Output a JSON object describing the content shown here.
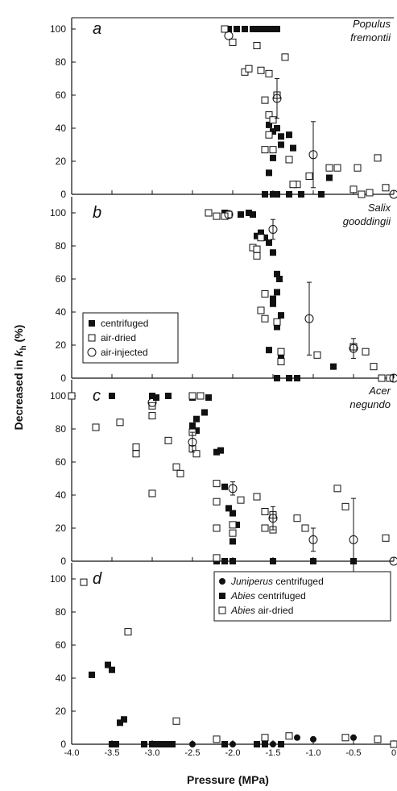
{
  "figure": {
    "ylabel_prefix": "Decreased in ",
    "ylabel_var": "k",
    "ylabel_sub": "h",
    "ylabel_suffix": " (%)",
    "xlabel": "Pressure (MPa)",
    "x_ticks": [
      "-4.0",
      "-3.5",
      "-3.0",
      "-2.5",
      "-2.0",
      "-1.5",
      "-1.0",
      "-0.5",
      "0"
    ],
    "y_ticks": [
      "0",
      "20",
      "40",
      "60",
      "80",
      "100"
    ]
  },
  "chart_data": [
    {
      "type": "scatter",
      "panel": "a",
      "species_line1": "Populus",
      "species_line2": "fremontii",
      "xlim": [
        -4.0,
        0
      ],
      "ylim": [
        0,
        100
      ],
      "series": [
        {
          "name": "centrifuged",
          "marker": "filled-square",
          "points": [
            [
              -2.05,
              100
            ],
            [
              -1.95,
              100
            ],
            [
              -1.85,
              100
            ],
            [
              -1.75,
              100
            ],
            [
              -1.7,
              100
            ],
            [
              -1.65,
              100
            ],
            [
              -1.6,
              100
            ],
            [
              -1.55,
              100
            ],
            [
              -1.5,
              100
            ],
            [
              -1.45,
              100
            ],
            [
              -1.55,
              42
            ],
            [
              -1.5,
              38
            ],
            [
              -1.45,
              40
            ],
            [
              -1.4,
              30
            ],
            [
              -1.3,
              36
            ],
            [
              -1.25,
              28
            ],
            [
              -1.5,
              22
            ],
            [
              -1.55,
              13
            ],
            [
              -1.6,
              0
            ],
            [
              -1.5,
              0
            ],
            [
              -1.45,
              0
            ],
            [
              -1.3,
              0
            ],
            [
              -1.15,
              0
            ],
            [
              -0.9,
              0
            ],
            [
              -0.8,
              10
            ],
            [
              -1.4,
              35
            ]
          ]
        },
        {
          "name": "air-dried",
          "marker": "open-square",
          "points": [
            [
              -2.1,
              100
            ],
            [
              -2.0,
              92
            ],
            [
              -1.85,
              74
            ],
            [
              -1.8,
              76
            ],
            [
              -1.7,
              90
            ],
            [
              -1.65,
              75
            ],
            [
              -1.55,
              73
            ],
            [
              -1.35,
              83
            ],
            [
              -1.45,
              60
            ],
            [
              -1.6,
              57
            ],
            [
              -1.55,
              48
            ],
            [
              -1.5,
              45
            ],
            [
              -1.55,
              36
            ],
            [
              -1.5,
              27
            ],
            [
              -1.3,
              21
            ],
            [
              -1.2,
              6
            ],
            [
              -1.05,
              11
            ],
            [
              -0.8,
              16
            ],
            [
              -0.7,
              16
            ],
            [
              -0.5,
              3
            ],
            [
              -0.4,
              0
            ],
            [
              -0.3,
              1
            ],
            [
              -0.2,
              22
            ],
            [
              -0.1,
              4
            ],
            [
              -0.45,
              16
            ],
            [
              -1.6,
              27
            ],
            [
              -1.25,
              6
            ]
          ]
        },
        {
          "name": "air-injected",
          "marker": "open-circle",
          "points": [
            [
              -2.05,
              96
            ],
            [
              -1.45,
              58
            ],
            [
              -1.0,
              24
            ],
            [
              0,
              0
            ]
          ],
          "error": [
            [
              0,
              0
            ],
            [
              12,
              12
            ],
            [
              20,
              20
            ],
            [
              0,
              0
            ]
          ]
        }
      ]
    },
    {
      "type": "scatter",
      "panel": "b",
      "species_line1": "Salix",
      "species_line2": "gooddingii",
      "xlim": [
        -4.0,
        0
      ],
      "ylim": [
        0,
        100
      ],
      "series": [
        {
          "name": "centrifuged",
          "marker": "filled-square",
          "points": [
            [
              -2.1,
              100
            ],
            [
              -2.05,
              99
            ],
            [
              -1.9,
              99
            ],
            [
              -1.8,
              100
            ],
            [
              -1.75,
              99
            ],
            [
              -1.7,
              86
            ],
            [
              -1.65,
              88
            ],
            [
              -1.6,
              85
            ],
            [
              -1.55,
              82
            ],
            [
              -1.5,
              76
            ],
            [
              -1.45,
              63
            ],
            [
              -1.42,
              60
            ],
            [
              -1.5,
              45
            ],
            [
              -1.45,
              52
            ],
            [
              -1.4,
              38
            ],
            [
              -1.45,
              31
            ],
            [
              -1.55,
              17
            ],
            [
              -1.4,
              12
            ],
            [
              -1.45,
              0
            ],
            [
              -1.3,
              0
            ],
            [
              -1.2,
              0
            ],
            [
              -0.75,
              7
            ],
            [
              -1.5,
              48
            ]
          ]
        },
        {
          "name": "air-dried",
          "marker": "open-square",
          "points": [
            [
              -2.3,
              100
            ],
            [
              -2.2,
              98
            ],
            [
              -2.05,
              99
            ],
            [
              -2.1,
              98
            ],
            [
              -1.7,
              74
            ],
            [
              -1.75,
              79
            ],
            [
              -1.7,
              78
            ],
            [
              -1.65,
              85
            ],
            [
              -1.6,
              51
            ],
            [
              -1.65,
              41
            ],
            [
              -1.6,
              36
            ],
            [
              -1.45,
              34
            ],
            [
              -1.4,
              16
            ],
            [
              -1.4,
              10
            ],
            [
              -0.95,
              14
            ],
            [
              -0.5,
              19
            ],
            [
              -0.35,
              16
            ],
            [
              -0.25,
              7
            ],
            [
              -0.15,
              0
            ],
            [
              -0.05,
              0
            ]
          ]
        },
        {
          "name": "air-injected",
          "marker": "open-circle",
          "points": [
            [
              -2.05,
              99
            ],
            [
              -1.5,
              90
            ],
            [
              -1.05,
              36
            ],
            [
              -0.5,
              18
            ],
            [
              0,
              0
            ]
          ],
          "error": [
            [
              0,
              0
            ],
            [
              6,
              6
            ],
            [
              22,
              22
            ],
            [
              6,
              6
            ],
            [
              0,
              0
            ]
          ]
        }
      ],
      "legend": {
        "position": "mid-left",
        "entries": [
          "centrifuged",
          "air-dried",
          "air-injected"
        ]
      }
    },
    {
      "type": "scatter",
      "panel": "c",
      "species_line1": "Acer",
      "species_line2": "negundo",
      "xlim": [
        -4.0,
        0
      ],
      "ylim": [
        0,
        100
      ],
      "series": [
        {
          "name": "centrifuged",
          "marker": "filled-square",
          "points": [
            [
              -3.5,
              100
            ],
            [
              -3.0,
              100
            ],
            [
              -2.95,
              99
            ],
            [
              -2.8,
              100
            ],
            [
              -2.5,
              99
            ],
            [
              -2.45,
              86
            ],
            [
              -2.5,
              82
            ],
            [
              -2.45,
              79
            ],
            [
              -2.35,
              90
            ],
            [
              -2.3,
              99
            ],
            [
              -2.2,
              66
            ],
            [
              -2.15,
              67
            ],
            [
              -2.1,
              45
            ],
            [
              -2.05,
              32
            ],
            [
              -2.0,
              29
            ],
            [
              -1.95,
              22
            ],
            [
              -2.0,
              12
            ],
            [
              -2.2,
              0
            ],
            [
              -2.1,
              0
            ],
            [
              -2.0,
              0
            ],
            [
              -1.5,
              0
            ],
            [
              -1.0,
              0
            ],
            [
              -0.5,
              0
            ]
          ]
        },
        {
          "name": "air-dried",
          "marker": "open-square",
          "points": [
            [
              -4.0,
              100
            ],
            [
              -3.7,
              81
            ],
            [
              -3.4,
              84
            ],
            [
              -3.2,
              65
            ],
            [
              -3.2,
              69
            ],
            [
              -3.0,
              88
            ],
            [
              -3.0,
              94
            ],
            [
              -3.0,
              41
            ],
            [
              -2.8,
              73
            ],
            [
              -2.7,
              57
            ],
            [
              -2.65,
              53
            ],
            [
              -2.5,
              78
            ],
            [
              -2.5,
              68
            ],
            [
              -2.45,
              65
            ],
            [
              -2.5,
              100
            ],
            [
              -2.4,
              100
            ],
            [
              -2.2,
              47
            ],
            [
              -2.2,
              36
            ],
            [
              -2.2,
              20
            ],
            [
              -2.0,
              17
            ],
            [
              -2.0,
              22
            ],
            [
              -1.9,
              37
            ],
            [
              -1.7,
              39
            ],
            [
              -1.6,
              30
            ],
            [
              -1.6,
              20
            ],
            [
              -1.5,
              19
            ],
            [
              -1.5,
              28
            ],
            [
              -1.2,
              26
            ],
            [
              -1.1,
              20
            ],
            [
              -0.7,
              44
            ],
            [
              -0.6,
              33
            ],
            [
              -0.1,
              14
            ],
            [
              -2.2,
              2
            ]
          ]
        },
        {
          "name": "air-injected",
          "marker": "open-circle",
          "points": [
            [
              -3.0,
              96
            ],
            [
              -2.5,
              72
            ],
            [
              -2.0,
              44
            ],
            [
              -1.5,
              26
            ],
            [
              -1.0,
              13
            ],
            [
              -0.5,
              13
            ],
            [
              0,
              0
            ]
          ],
          "error": [
            [
              0,
              0
            ],
            [
              6,
              6
            ],
            [
              4,
              4
            ],
            [
              7,
              7
            ],
            [
              7,
              7
            ],
            [
              25,
              25
            ],
            [
              0,
              0
            ]
          ]
        }
      ]
    },
    {
      "type": "scatter",
      "panel": "d",
      "xlim": [
        -4.0,
        0
      ],
      "ylim": [
        0,
        100
      ],
      "series": [
        {
          "name": "Juniperus centrifuged",
          "marker": "filled-circle",
          "points": [
            [
              -3.45,
              0
            ],
            [
              -3.0,
              0
            ],
            [
              -2.85,
              0
            ],
            [
              -2.5,
              0
            ],
            [
              -2.0,
              0
            ],
            [
              -1.5,
              0
            ],
            [
              -1.2,
              4
            ],
            [
              -1.0,
              3
            ],
            [
              -0.5,
              4
            ]
          ]
        },
        {
          "name": "Abies centrifuged",
          "marker": "filled-square",
          "points": [
            [
              -3.75,
              42
            ],
            [
              -3.55,
              48
            ],
            [
              -3.5,
              45
            ],
            [
              -3.45,
              0
            ],
            [
              -3.5,
              0
            ],
            [
              -3.35,
              15
            ],
            [
              -3.4,
              13
            ],
            [
              -3.1,
              0
            ],
            [
              -3.0,
              0
            ],
            [
              -2.95,
              0
            ],
            [
              -2.9,
              0
            ],
            [
              -2.85,
              0
            ],
            [
              -2.8,
              0
            ],
            [
              -2.75,
              0
            ],
            [
              -2.1,
              0
            ],
            [
              -1.7,
              0
            ],
            [
              -1.6,
              0
            ],
            [
              -1.4,
              0
            ]
          ]
        },
        {
          "name": "Abies air-dried",
          "marker": "open-square",
          "points": [
            [
              -3.85,
              98
            ],
            [
              -3.3,
              68
            ],
            [
              -2.7,
              14
            ],
            [
              -2.2,
              3
            ],
            [
              -1.6,
              4
            ],
            [
              -1.3,
              5
            ],
            [
              -0.6,
              4
            ],
            [
              -0.2,
              3
            ],
            [
              0,
              0
            ]
          ]
        }
      ],
      "legend": {
        "position": "top-right",
        "entries": [
          {
            "italic": "Juniperus",
            "rest": " centrifuged",
            "marker": "filled-circle"
          },
          {
            "italic": "Abies",
            "rest": " centrifuged",
            "marker": "filled-square"
          },
          {
            "italic": "Abies",
            "rest": " air-dried",
            "marker": "open-square"
          }
        ]
      }
    }
  ]
}
